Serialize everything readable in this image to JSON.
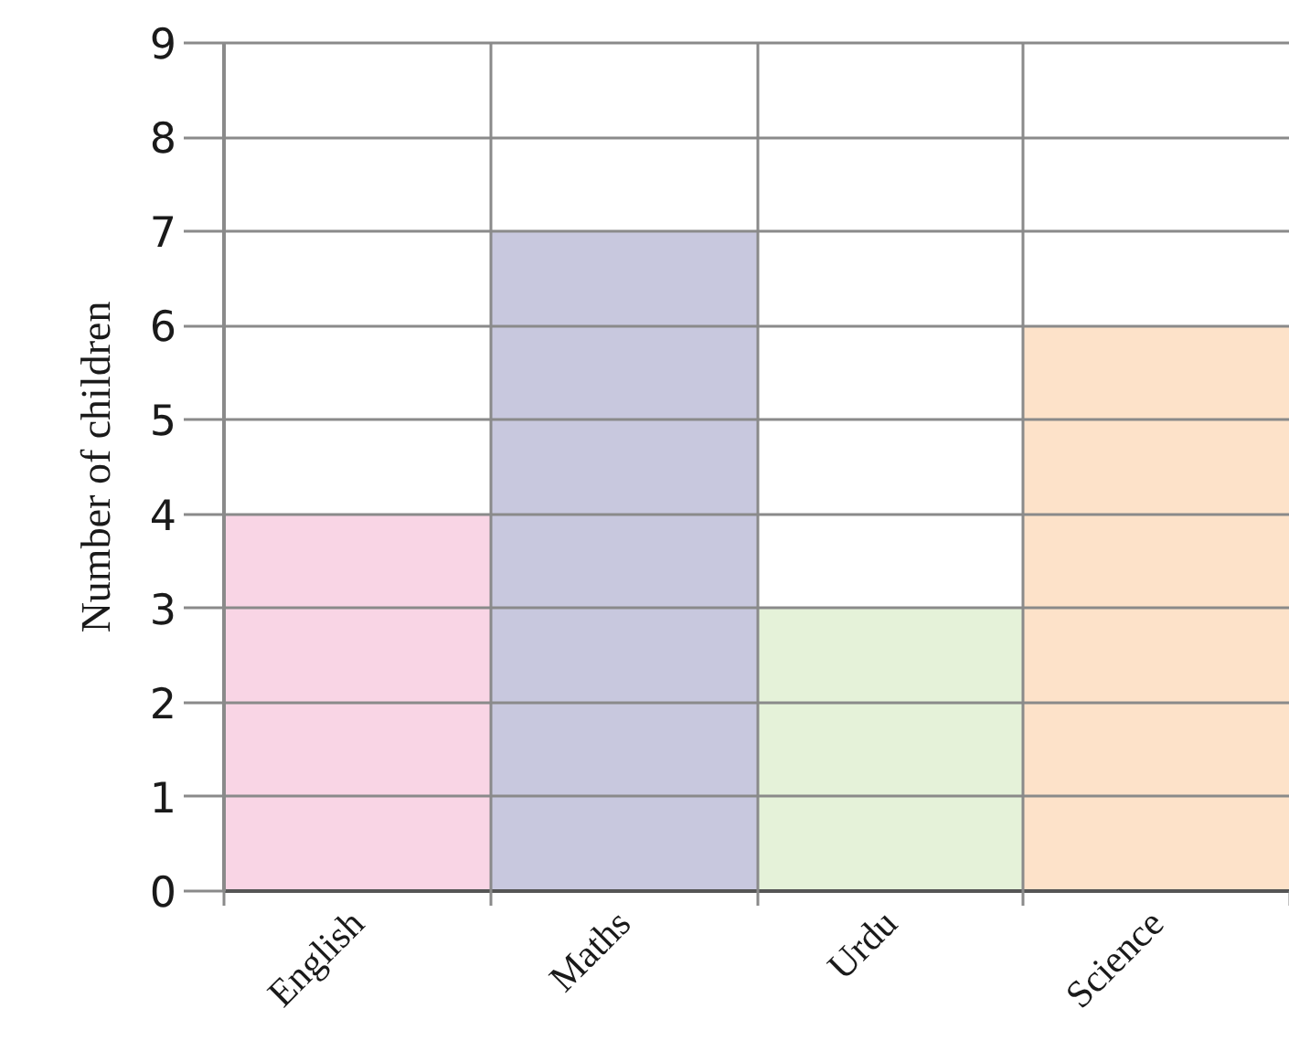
{
  "chart_data": {
    "type": "bar",
    "ylabel": "Number of children",
    "categories": [
      "English",
      "Maths",
      "Urdu",
      "Science"
    ],
    "values": [
      4,
      7,
      3,
      6
    ],
    "colors": [
      "#f9d5e5",
      "#c8c8de",
      "#e5f2d9",
      "#fde2c9"
    ],
    "ylim": [
      0,
      9
    ],
    "yticks": [
      0,
      1,
      2,
      3,
      4,
      5,
      6,
      7,
      8,
      9
    ],
    "grid": true
  }
}
